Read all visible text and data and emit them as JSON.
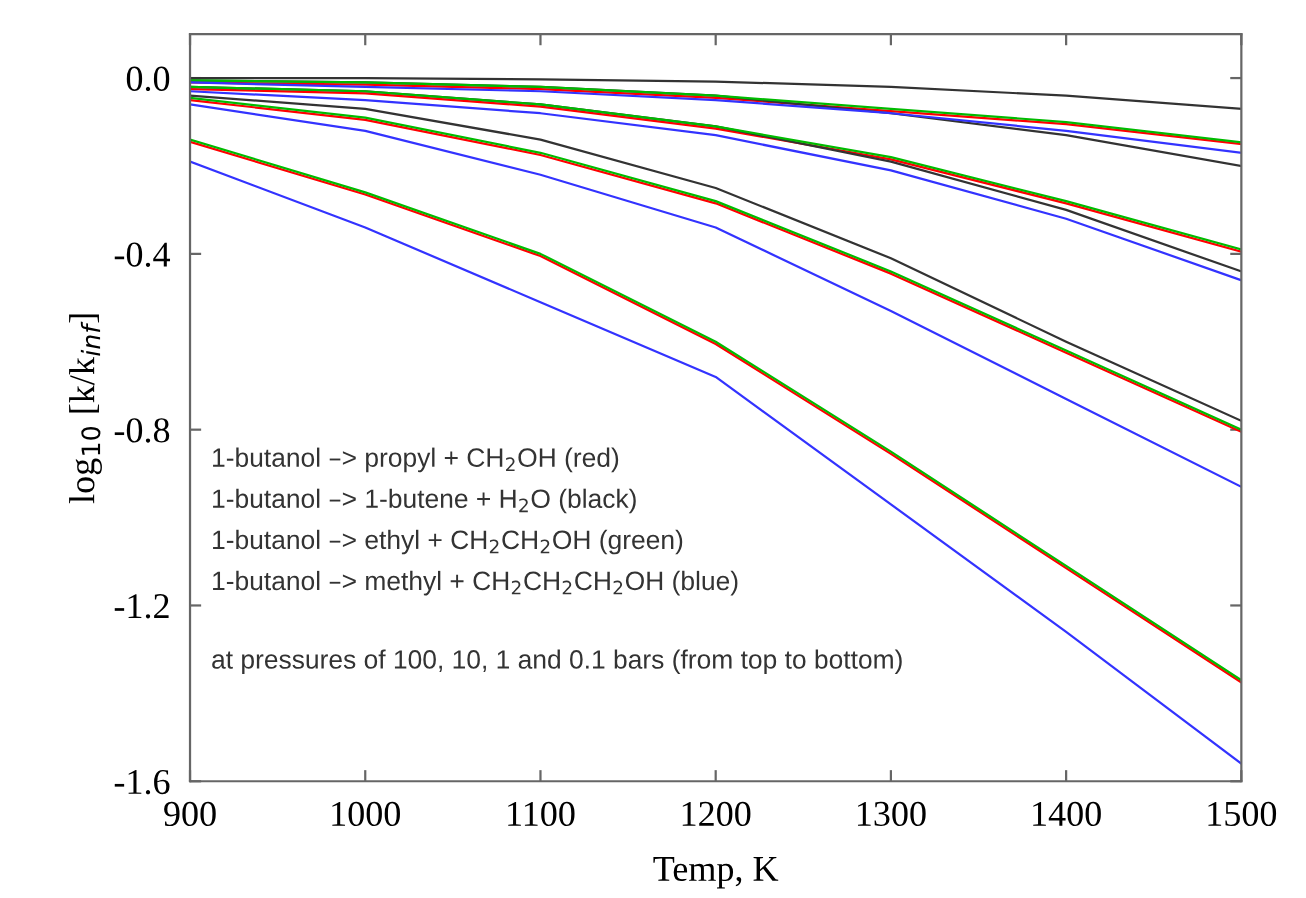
{
  "chart_data": {
    "type": "line",
    "xlabel": "Temp, K",
    "ylabel": "log$_{10}$ [k/k$_{inf}$]",
    "x": [
      900,
      1000,
      1100,
      1200,
      1300,
      1400,
      1500
    ],
    "xlim": [
      900,
      1500
    ],
    "xticks": [
      900,
      1000,
      1100,
      1200,
      1300,
      1400,
      1500
    ],
    "ylim": [
      -1.6,
      0.1
    ],
    "yticks": [
      {
        "value": 0,
        "label": "0.0"
      },
      -0.4,
      -0.8,
      -1.2,
      -1.6
    ],
    "grid": false,
    "legend": false,
    "marker": "none",
    "line_style": "solid",
    "series": [
      {
        "color": "#ff0000",
        "values": [
          -0.01,
          -0.015,
          -0.025,
          -0.045,
          -0.075,
          -0.105,
          -0.15
        ]
      },
      {
        "color": "#ff0000",
        "values": [
          -0.025,
          -0.035,
          -0.065,
          -0.115,
          -0.185,
          -0.285,
          -0.395
        ]
      },
      {
        "color": "#ff0000",
        "values": [
          -0.05,
          -0.095,
          -0.175,
          -0.285,
          -0.445,
          -0.625,
          -0.805
        ]
      },
      {
        "color": "#ff0000",
        "values": [
          -0.145,
          -0.265,
          -0.405,
          -0.605,
          -0.855,
          -1.115,
          -1.375
        ]
      },
      {
        "color": "#333333",
        "values": [
          0.0,
          0.0,
          -0.003,
          -0.008,
          -0.02,
          -0.04,
          -0.07
        ]
      },
      {
        "color": "#333333",
        "values": [
          -0.005,
          -0.01,
          -0.02,
          -0.04,
          -0.08,
          -0.13,
          -0.2
        ]
      },
      {
        "color": "#333333",
        "values": [
          -0.02,
          -0.03,
          -0.06,
          -0.11,
          -0.19,
          -0.3,
          -0.44
        ]
      },
      {
        "color": "#333333",
        "values": [
          -0.04,
          -0.07,
          -0.14,
          -0.25,
          -0.41,
          -0.6,
          -0.78
        ]
      },
      {
        "color": "#00bb00",
        "values": [
          -0.005,
          -0.01,
          -0.02,
          -0.04,
          -0.07,
          -0.1,
          -0.146
        ]
      },
      {
        "color": "#00bb00",
        "values": [
          -0.02,
          -0.03,
          -0.06,
          -0.11,
          -0.18,
          -0.28,
          -0.39
        ]
      },
      {
        "color": "#00bb00",
        "values": [
          -0.045,
          -0.09,
          -0.17,
          -0.28,
          -0.44,
          -0.62,
          -0.8
        ]
      },
      {
        "color": "#00bb00",
        "values": [
          -0.14,
          -0.26,
          -0.4,
          -0.6,
          -0.85,
          -1.11,
          -1.37
        ]
      },
      {
        "color": "#3333ff",
        "values": [
          -0.01,
          -0.02,
          -0.03,
          -0.05,
          -0.08,
          -0.12,
          -0.17
        ]
      },
      {
        "color": "#3333ff",
        "values": [
          -0.03,
          -0.05,
          -0.08,
          -0.13,
          -0.21,
          -0.32,
          -0.46
        ]
      },
      {
        "color": "#3333ff",
        "values": [
          -0.06,
          -0.12,
          -0.22,
          -0.34,
          -0.53,
          -0.73,
          -0.93
        ]
      },
      {
        "color": "#3333ff",
        "values": [
          -0.19,
          -0.34,
          -0.51,
          -0.68,
          -0.97,
          -1.26,
          -1.56
        ]
      }
    ],
    "annotations": [
      "1-butanol –> propyl + CH$_{2}$OH (red)",
      "1-butanol –> 1-butene + H$_{2}$O (black)",
      "1-butanol –> ethyl + CH$_{2}$CH$_{2}$OH (green)",
      "1-butanol –> methyl + CH$_{2}$CH$_{2}$CH$_{2}$OH (blue)",
      "at pressures of 100, 10, 1 and 0.1 bars (from top to bottom)"
    ]
  }
}
